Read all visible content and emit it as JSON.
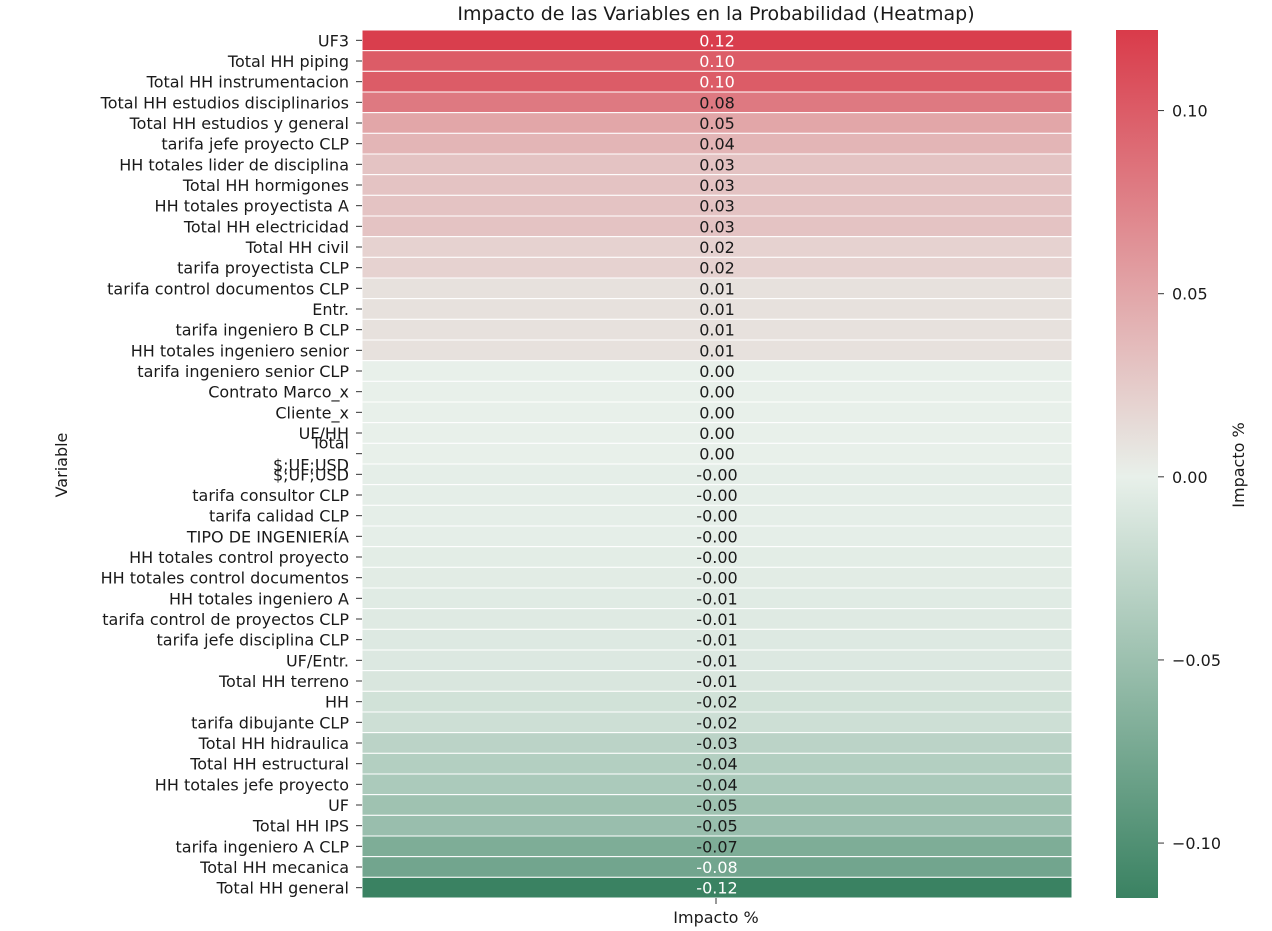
{
  "chart_data": {
    "type": "heatmap",
    "title": "Impacto de las Variables en la Probabilidad (Heatmap)",
    "xlabel": "Impacto %",
    "ylabel": "Variable",
    "columns": [
      "Impacto %"
    ],
    "colorbar": {
      "label": "Impacto %",
      "range": [
        -0.115,
        0.122
      ],
      "ticks": [
        0.1,
        0.05,
        0.0,
        -0.05,
        -0.1
      ],
      "tick_labels": [
        "0.10",
        "0.05",
        "0.00",
        "−0.05",
        "−0.10"
      ],
      "colors": {
        "high": "#d93b4a",
        "mid": "#e8f0ea",
        "low": "#3a8262"
      }
    },
    "rows": [
      {
        "label": "UF3",
        "value": 0.12,
        "display": "0.12"
      },
      {
        "label": "Total HH piping",
        "value": 0.1,
        "display": "0.10"
      },
      {
        "label": "Total HH instrumentacion",
        "value": 0.1,
        "display": "0.10"
      },
      {
        "label": "Total HH estudios disciplinarios",
        "value": 0.08,
        "display": "0.08"
      },
      {
        "label": "Total HH estudios y general",
        "value": 0.05,
        "display": "0.05"
      },
      {
        "label": "tarifa jefe proyecto CLP",
        "value": 0.04,
        "display": "0.04"
      },
      {
        "label": "HH totales lider de disciplina",
        "value": 0.03,
        "display": "0.03"
      },
      {
        "label": "Total HH hormigones",
        "value": 0.03,
        "display": "0.03"
      },
      {
        "label": "HH totales proyectista A",
        "value": 0.03,
        "display": "0.03"
      },
      {
        "label": "Total HH electricidad",
        "value": 0.03,
        "display": "0.03"
      },
      {
        "label": "Total HH civil",
        "value": 0.02,
        "display": "0.02"
      },
      {
        "label": "tarifa proyectista CLP",
        "value": 0.02,
        "display": "0.02"
      },
      {
        "label": "tarifa control documentos CLP",
        "value": 0.01,
        "display": "0.01"
      },
      {
        "label": "Entr.",
        "value": 0.01,
        "display": "0.01"
      },
      {
        "label": "tarifa ingeniero B CLP",
        "value": 0.01,
        "display": "0.01"
      },
      {
        "label": "HH totales ingeniero senior",
        "value": 0.01,
        "display": "0.01"
      },
      {
        "label": "tarifa ingeniero senior CLP",
        "value": 0.0,
        "display": "0.00"
      },
      {
        "label": "Contrato Marco_x",
        "value": 0.0,
        "display": "0.00"
      },
      {
        "label": "Cliente_x",
        "value": 0.0,
        "display": "0.00"
      },
      {
        "label": "UF/HH",
        "value": 0.0,
        "display": "0.00"
      },
      {
        "label": "Total\n$;UF;USD",
        "value": 0.0,
        "display": "0.00"
      },
      {
        "label": "$;UF;USD",
        "value": -0.002,
        "display": "-0.00"
      },
      {
        "label": "tarifa consultor CLP",
        "value": -0.002,
        "display": "-0.00"
      },
      {
        "label": "tarifa calidad CLP",
        "value": -0.002,
        "display": "-0.00"
      },
      {
        "label": "TIPO DE INGENIERÍA",
        "value": -0.002,
        "display": "-0.00"
      },
      {
        "label": "HH totales control proyecto",
        "value": -0.003,
        "display": "-0.00"
      },
      {
        "label": "HH totales control documentos",
        "value": -0.004,
        "display": "-0.00"
      },
      {
        "label": "HH totales ingeniero A",
        "value": -0.005,
        "display": "-0.01"
      },
      {
        "label": "tarifa control de proyectos CLP",
        "value": -0.006,
        "display": "-0.01"
      },
      {
        "label": "tarifa jefe disciplina CLP",
        "value": -0.007,
        "display": "-0.01"
      },
      {
        "label": "UF/Entr.",
        "value": -0.008,
        "display": "-0.01"
      },
      {
        "label": "Total HH terreno",
        "value": -0.01,
        "display": "-0.01"
      },
      {
        "label": "HH",
        "value": -0.015,
        "display": "-0.02"
      },
      {
        "label": "tarifa dibujante CLP",
        "value": -0.018,
        "display": "-0.02"
      },
      {
        "label": "Total HH hidraulica",
        "value": -0.03,
        "display": "-0.03"
      },
      {
        "label": "Total HH estructural",
        "value": -0.035,
        "display": "-0.04"
      },
      {
        "label": "HH totales jefe proyecto",
        "value": -0.04,
        "display": "-0.04"
      },
      {
        "label": "UF",
        "value": -0.048,
        "display": "-0.05"
      },
      {
        "label": "Total HH IPS",
        "value": -0.052,
        "display": "-0.05"
      },
      {
        "label": "tarifa ingeniero A CLP",
        "value": -0.07,
        "display": "-0.07"
      },
      {
        "label": "Total HH mecanica",
        "value": -0.078,
        "display": "-0.08"
      },
      {
        "label": "Total HH general",
        "value": -0.115,
        "display": "-0.12"
      }
    ]
  }
}
